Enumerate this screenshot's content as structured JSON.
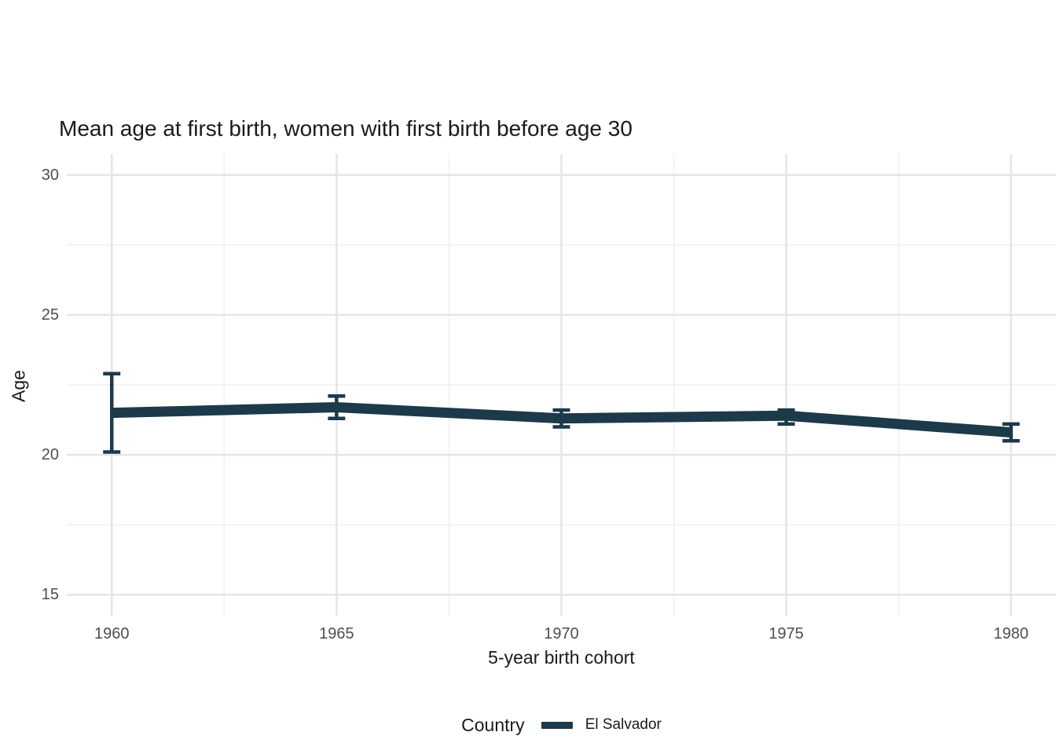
{
  "chart_data": {
    "type": "line",
    "title": "Mean age at first birth, women with first birth before age 30",
    "xlabel": "5-year birth cohort",
    "ylabel": "Age",
    "x": [
      1960,
      1965,
      1970,
      1975,
      1980
    ],
    "series": [
      {
        "name": "El Salvador",
        "color": "#1c3a4a",
        "means": [
          21.5,
          21.7,
          21.3,
          21.4,
          20.8
        ],
        "ci_lower": [
          20.1,
          21.3,
          21.0,
          21.1,
          20.5
        ],
        "ci_upper": [
          22.9,
          22.1,
          21.6,
          21.6,
          21.1
        ]
      }
    ],
    "xticks": [
      1960,
      1965,
      1970,
      1975,
      1980
    ],
    "yticks": [
      15,
      20,
      25,
      30
    ],
    "xlim": [
      1959,
      1981
    ],
    "ylim": [
      14.25,
      30.75
    ],
    "grid": "major+minor",
    "legend_position": "bottom",
    "legend_title": "Country",
    "colors": {
      "background": "#ffffff",
      "grid_major": "#e5e5e5",
      "grid_minor": "#f0f0f0",
      "tick_label": "#4d4d4d",
      "text": "#1a1a1a"
    }
  }
}
